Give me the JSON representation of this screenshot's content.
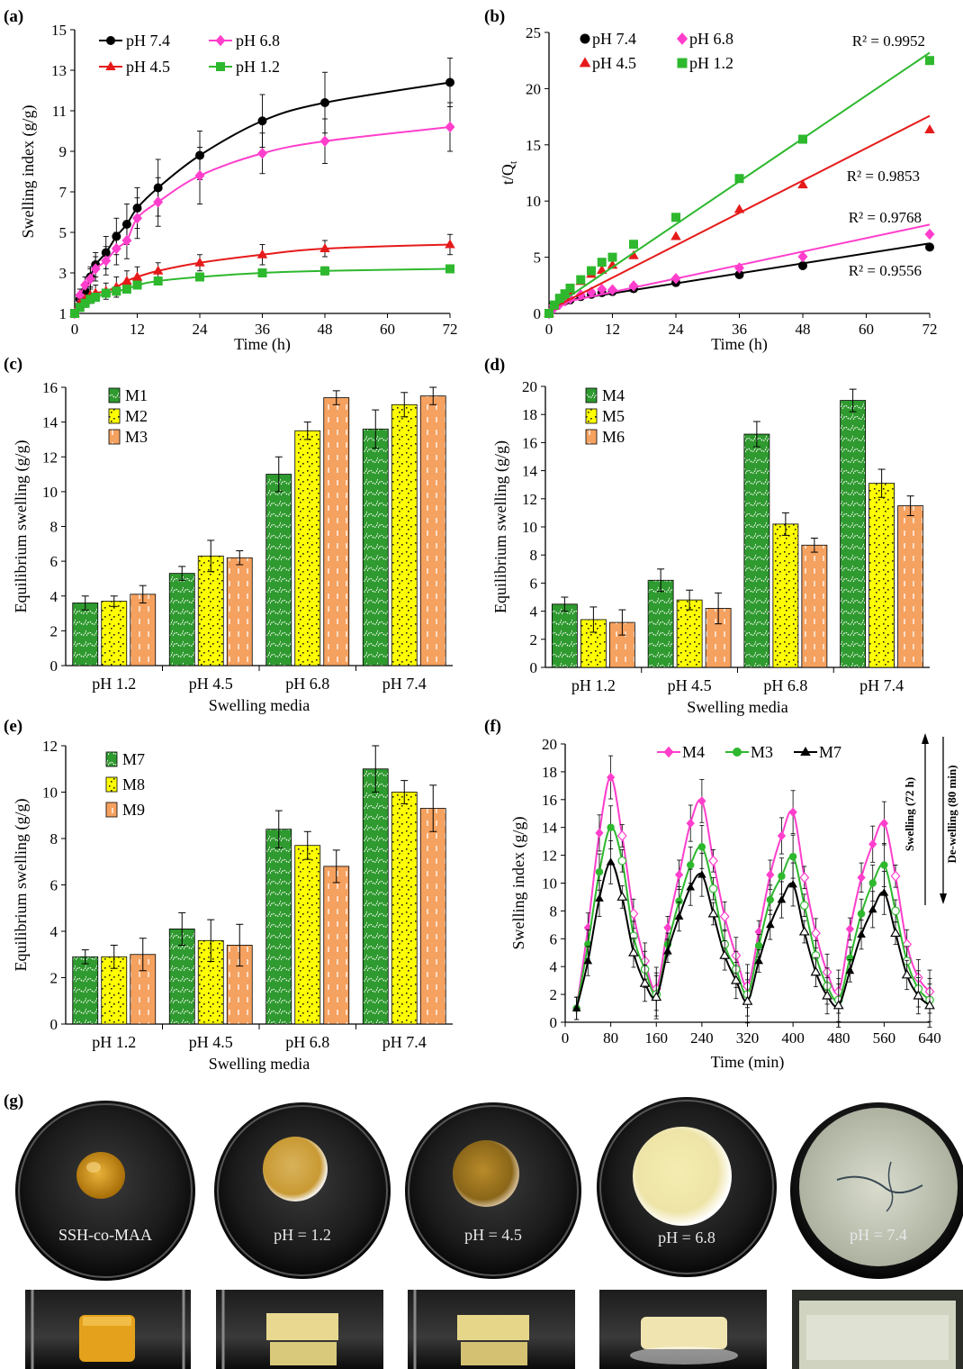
{
  "chart_data": [
    {
      "panel": "(a)",
      "type": "line",
      "xlabel": "Time (h)",
      "ylabel": "Swelling index (g/g)",
      "xlim": [
        0,
        72
      ],
      "ylim": [
        1,
        15
      ],
      "xticks": [
        0,
        12,
        24,
        36,
        48,
        60,
        72
      ],
      "yticks": [
        1,
        3,
        5,
        7,
        9,
        11,
        13,
        15
      ],
      "legend": "top-left",
      "series": [
        {
          "name": "pH 7.4",
          "marker": "circle",
          "color": "#000000",
          "x": [
            0,
            1,
            2,
            3,
            4,
            6,
            8,
            10,
            12,
            16,
            24,
            36,
            48,
            72
          ],
          "y": [
            1.0,
            1.7,
            2.1,
            2.8,
            3.4,
            4.0,
            4.8,
            5.4,
            6.2,
            7.2,
            8.8,
            10.5,
            11.4,
            12.4
          ],
          "err": [
            0.1,
            0.3,
            0.4,
            0.5,
            0.6,
            0.8,
            0.9,
            1.0,
            1.0,
            1.4,
            1.2,
            1.3,
            1.5,
            1.2
          ]
        },
        {
          "name": "pH 6.8",
          "marker": "diamond",
          "color": "#ff3fcc",
          "x": [
            0,
            1,
            2,
            3,
            4,
            6,
            8,
            10,
            12,
            16,
            24,
            36,
            48,
            72
          ],
          "y": [
            1.0,
            1.9,
            2.4,
            2.7,
            3.2,
            3.6,
            4.2,
            4.6,
            5.7,
            6.5,
            7.8,
            8.9,
            9.5,
            10.2
          ],
          "err": [
            0.1,
            0.3,
            0.4,
            0.5,
            0.6,
            0.7,
            0.8,
            0.9,
            1.0,
            1.2,
            1.4,
            1.0,
            1.1,
            1.2
          ]
        },
        {
          "name": "pH 4.5",
          "marker": "triangle",
          "color": "#e61a1a",
          "x": [
            0,
            1,
            2,
            3,
            4,
            6,
            8,
            10,
            12,
            16,
            24,
            36,
            48,
            72
          ],
          "y": [
            1.0,
            1.5,
            1.7,
            1.9,
            2.0,
            2.1,
            2.3,
            2.6,
            2.8,
            3.1,
            3.5,
            3.9,
            4.2,
            4.4
          ],
          "err": [
            0.1,
            0.2,
            0.3,
            0.4,
            0.4,
            0.4,
            0.5,
            0.5,
            0.5,
            0.4,
            0.4,
            0.5,
            0.4,
            0.5
          ]
        },
        {
          "name": "pH 1.2",
          "marker": "square",
          "color": "#2eb82e",
          "x": [
            0,
            1,
            2,
            3,
            4,
            6,
            8,
            10,
            12,
            16,
            24,
            36,
            48,
            72
          ],
          "y": [
            1.0,
            1.3,
            1.5,
            1.7,
            1.8,
            2.0,
            2.1,
            2.2,
            2.4,
            2.6,
            2.8,
            3.0,
            3.1,
            3.2
          ],
          "err": [
            0.1,
            0.2,
            0.2,
            0.2,
            0.2,
            0.2,
            0.2,
            0.2,
            0.2,
            0.2,
            0.2,
            0.2,
            0.2,
            0.2
          ]
        }
      ]
    },
    {
      "panel": "(b)",
      "type": "scatter",
      "xlabel": "Time (h)",
      "ylabel_main": "t/Q",
      "ylabel_sub": "t",
      "xlim": [
        0,
        72
      ],
      "ylim": [
        0,
        25
      ],
      "xticks": [
        0,
        12,
        24,
        36,
        48,
        60,
        72
      ],
      "yticks": [
        0,
        5,
        10,
        15,
        20,
        25
      ],
      "legend": "top-left",
      "series": [
        {
          "name": "pH 7.4",
          "marker": "circle",
          "color": "#000000",
          "x": [
            0,
            1,
            2,
            3,
            4,
            6,
            8,
            10,
            12,
            16,
            24,
            36,
            48,
            72
          ],
          "y": [
            0,
            0.6,
            0.95,
            1.1,
            1.2,
            1.5,
            1.7,
            1.85,
            1.95,
            2.2,
            2.75,
            3.45,
            4.25,
            5.9
          ],
          "r2": "R² = 0.9556",
          "fit": [
            0.9,
            0.074
          ]
        },
        {
          "name": "pH 6.8",
          "marker": "diamond",
          "color": "#ff3fcc",
          "x": [
            0,
            1,
            2,
            3,
            4,
            6,
            8,
            10,
            12,
            16,
            24,
            36,
            48,
            72
          ],
          "y": [
            0,
            0.5,
            0.8,
            1.1,
            1.3,
            1.65,
            1.9,
            2.15,
            2.1,
            2.45,
            3.1,
            4.05,
            5.05,
            7.05
          ],
          "r2": "R² = 0.9768",
          "fit": [
            0.7,
            0.1
          ]
        },
        {
          "name": "pH 4.5",
          "marker": "triangle",
          "color": "#e61a1a",
          "x": [
            0,
            1,
            2,
            3,
            4,
            6,
            8,
            10,
            12,
            16,
            24,
            36,
            48,
            72
          ],
          "y": [
            0,
            0.65,
            1.15,
            1.55,
            2.0,
            2.85,
            3.5,
            3.85,
            4.3,
            5.15,
            6.85,
            9.25,
            11.45,
            16.35
          ],
          "r2": "R² = 0.9853",
          "fit": [
            0.3,
            0.24
          ]
        },
        {
          "name": "pH 1.2",
          "marker": "square",
          "color": "#2eb82e",
          "x": [
            0,
            1,
            2,
            3,
            4,
            6,
            8,
            10,
            12,
            16,
            24,
            36,
            48,
            72
          ],
          "y": [
            0,
            0.75,
            1.35,
            1.75,
            2.25,
            3.0,
            3.8,
            4.55,
            5.0,
            6.15,
            8.55,
            12.0,
            15.5,
            22.5
          ],
          "r2": "R² = 0.9952",
          "fit": [
            0.3,
            0.318
          ]
        }
      ]
    },
    {
      "panel": "(c)",
      "type": "bar",
      "xlabel": "Swelling media",
      "ylabel": "Equilibrium swelling (g/g)",
      "ylim": [
        0,
        16
      ],
      "yticks": [
        0,
        2,
        4,
        6,
        8,
        10,
        12,
        14,
        16
      ],
      "categories": [
        "pH 1.2",
        "pH 4.5",
        "pH 6.8",
        "pH 7.4"
      ],
      "legend": "top-left",
      "series": [
        {
          "name": "M1",
          "values": [
            3.6,
            5.3,
            11.0,
            13.6
          ],
          "err": [
            0.4,
            0.4,
            1.0,
            1.1
          ]
        },
        {
          "name": "M2",
          "values": [
            3.7,
            6.3,
            13.5,
            15.0
          ],
          "err": [
            0.3,
            0.9,
            0.5,
            0.7
          ]
        },
        {
          "name": "M3",
          "values": [
            4.1,
            6.2,
            15.4,
            15.5
          ],
          "err": [
            0.5,
            0.4,
            0.4,
            0.5
          ]
        }
      ]
    },
    {
      "panel": "(d)",
      "type": "bar",
      "xlabel": "Swelling  media",
      "ylabel": "Equilibrium swelling (g/g)",
      "ylim": [
        0,
        20
      ],
      "yticks": [
        0,
        2,
        4,
        6,
        8,
        10,
        12,
        14,
        16,
        18,
        20
      ],
      "categories": [
        "pH 1.2",
        "pH 4.5",
        "pH 6.8",
        "pH 7.4"
      ],
      "legend": "top-left",
      "series": [
        {
          "name": "M4",
          "values": [
            4.5,
            6.2,
            16.6,
            19.0
          ],
          "err": [
            0.5,
            0.8,
            0.9,
            0.8
          ]
        },
        {
          "name": "M5",
          "values": [
            3.4,
            4.8,
            10.2,
            13.1
          ],
          "err": [
            0.9,
            0.7,
            0.8,
            1.0
          ]
        },
        {
          "name": "M6",
          "values": [
            3.2,
            4.2,
            8.7,
            11.5
          ],
          "err": [
            0.9,
            1.1,
            0.5,
            0.7
          ]
        }
      ]
    },
    {
      "panel": "(e)",
      "type": "bar",
      "xlabel": "Swelling media",
      "ylabel": "Equilibrium swelling (g/g)",
      "ylim": [
        0,
        12
      ],
      "yticks": [
        0,
        2,
        4,
        6,
        8,
        10,
        12
      ],
      "categories": [
        "pH 1.2",
        "pH 4.5",
        "pH 6.8",
        "pH 7.4"
      ],
      "legend": "top-left",
      "series": [
        {
          "name": "M7",
          "values": [
            2.9,
            4.1,
            8.4,
            11.0
          ],
          "err": [
            0.3,
            0.7,
            0.8,
            1.0
          ]
        },
        {
          "name": "M8",
          "values": [
            2.9,
            3.6,
            7.7,
            10.0
          ],
          "err": [
            0.5,
            0.9,
            0.6,
            0.5
          ]
        },
        {
          "name": "M9",
          "values": [
            3.0,
            3.4,
            6.8,
            9.3
          ],
          "err": [
            0.7,
            0.9,
            0.7,
            1.0
          ]
        }
      ]
    },
    {
      "panel": "(f)",
      "type": "line",
      "xlabel": "Time (min)",
      "ylabel": "Swelling index (g/g)",
      "xlim": [
        0,
        640
      ],
      "ylim": [
        0,
        20
      ],
      "xticks": [
        0,
        80,
        160,
        240,
        320,
        400,
        480,
        560,
        640
      ],
      "yticks": [
        0,
        2,
        4,
        6,
        8,
        10,
        12,
        14,
        16,
        18,
        20
      ],
      "legend": "top-center",
      "annotation_up": "Swelling (72 h)",
      "annotation_down": "De-welling (80 min)",
      "series": [
        {
          "name": "M4",
          "marker": "diamond",
          "color": "#ff3fcc",
          "x": [
            20,
            40,
            60,
            80,
            100,
            120,
            140,
            160,
            180,
            200,
            220,
            240,
            260,
            280,
            300,
            320,
            340,
            360,
            380,
            400,
            420,
            440,
            460,
            480,
            500,
            520,
            540,
            560,
            580,
            600,
            620,
            640
          ],
          "y": [
            1.0,
            6.8,
            13.6,
            17.6,
            13.4,
            7.8,
            4.4,
            2.4,
            6.8,
            10.6,
            14.3,
            15.9,
            11.6,
            7.6,
            4.8,
            2.6,
            6.5,
            10.6,
            13.4,
            15.1,
            10.4,
            6.4,
            3.6,
            2.2,
            6.7,
            10.4,
            12.8,
            14.3,
            10.5,
            5.6,
            3.2,
            2.2
          ]
        },
        {
          "name": "M3",
          "marker": "circle",
          "color": "#2eb82e",
          "x": [
            20,
            40,
            60,
            80,
            100,
            120,
            140,
            160,
            180,
            200,
            220,
            240,
            260,
            280,
            300,
            320,
            340,
            360,
            380,
            400,
            420,
            440,
            460,
            480,
            500,
            520,
            540,
            560,
            580,
            600,
            620,
            640
          ],
          "y": [
            1.0,
            5.6,
            10.8,
            14.0,
            11.6,
            6.2,
            3.8,
            2.0,
            5.6,
            8.7,
            11.3,
            12.6,
            9.6,
            5.6,
            3.8,
            2.0,
            5.5,
            8.8,
            10.5,
            11.9,
            8.4,
            4.8,
            2.6,
            1.6,
            4.6,
            7.8,
            10.0,
            11.3,
            8.0,
            4.4,
            2.4,
            1.6
          ]
        },
        {
          "name": "M7",
          "marker": "triangle",
          "color": "#000000",
          "x": [
            20,
            40,
            60,
            80,
            100,
            120,
            140,
            160,
            180,
            200,
            220,
            240,
            260,
            280,
            300,
            320,
            340,
            360,
            380,
            400,
            420,
            440,
            460,
            480,
            500,
            520,
            540,
            560,
            580,
            600,
            620,
            640
          ],
          "y": [
            1.0,
            4.4,
            8.9,
            11.5,
            9.0,
            5.0,
            2.8,
            1.8,
            5.1,
            7.6,
            9.7,
            10.6,
            7.8,
            4.8,
            3.0,
            1.5,
            4.4,
            7.0,
            8.8,
            9.9,
            6.5,
            3.6,
            1.9,
            1.2,
            3.7,
            6.3,
            8.1,
            9.3,
            6.4,
            3.4,
            1.9,
            1.2
          ]
        }
      ]
    }
  ],
  "panel_g": {
    "label": "(g)",
    "photo_labels": [
      "SSH-co-MAA",
      "pH = 1.2",
      "pH = 4.5",
      "pH = 6.8",
      "pH = 7.4"
    ]
  }
}
